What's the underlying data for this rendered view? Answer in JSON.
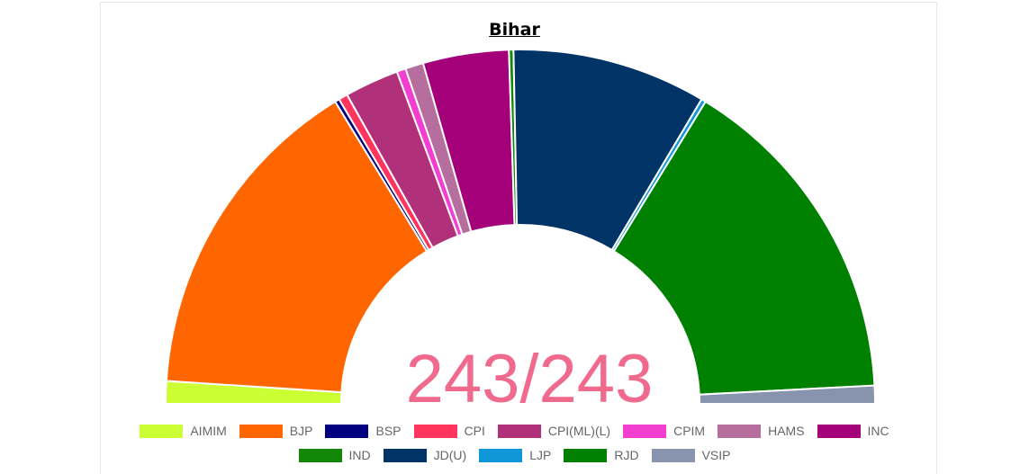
{
  "chart_data": {
    "type": "pie",
    "title": "Bihar",
    "center_text": "243/243",
    "center_color": "#f06a8e",
    "total": 243,
    "series": [
      {
        "name": "AIMIM",
        "value": 5,
        "color": "#ccff33"
      },
      {
        "name": "BJP",
        "value": 74,
        "color": "#ff6600"
      },
      {
        "name": "BSP",
        "value": 1,
        "color": "#000080"
      },
      {
        "name": "CPI",
        "value": 2,
        "color": "#ff355e"
      },
      {
        "name": "CPI(ML)(L)",
        "value": 12,
        "color": "#b0307a"
      },
      {
        "name": "CPIM",
        "value": 2,
        "color": "#f23fd2"
      },
      {
        "name": "HAMS",
        "value": 4,
        "color": "#b56e9e"
      },
      {
        "name": "INC",
        "value": 19,
        "color": "#a4007a"
      },
      {
        "name": "IND",
        "value": 1,
        "color": "#138808"
      },
      {
        "name": "JD(U)",
        "value": 43,
        "color": "#003366"
      },
      {
        "name": "LJP",
        "value": 1,
        "color": "#0f97d9"
      },
      {
        "name": "RJD",
        "value": 75,
        "color": "#008000"
      },
      {
        "name": "VSIP",
        "value": 4,
        "color": "#8893ad"
      }
    ],
    "legend_position": "bottom"
  }
}
